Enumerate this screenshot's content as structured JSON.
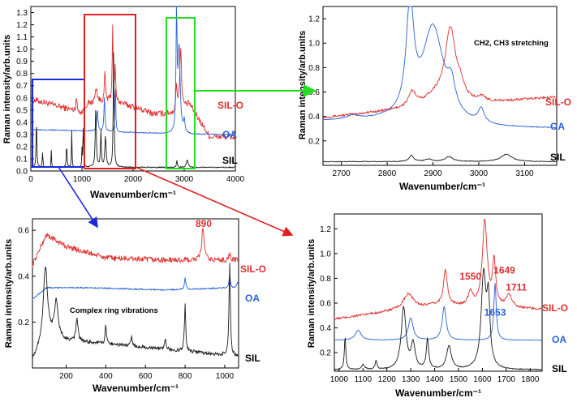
{
  "colors": {
    "sil": "#1a1a1a",
    "oa": "#2a62d6",
    "silo": "#e03030",
    "green": "#22dd22",
    "blue_box": "#1a2ad8",
    "red_box": "#e02020"
  },
  "chart_data": [
    {
      "id": "overview",
      "type": "line",
      "xlabel": "Wavenumber/cm⁻¹",
      "ylabel": "Raman intensity/arb.units",
      "xlim": [
        0,
        4000
      ],
      "ylim": [
        0,
        1.35
      ],
      "xticks": [
        0,
        1000,
        2000,
        3000,
        4000
      ],
      "xtick_labels": [
        "0",
        "1000",
        "2000",
        "3000",
        "4000"
      ],
      "yticks": [
        0,
        0.1,
        0.2,
        0.3,
        0.4,
        0.5,
        0.6,
        0.7,
        0.8,
        0.9,
        1.0,
        1.1,
        1.2,
        1.3
      ],
      "ytick_labels": [
        "0.0",
        "0.1",
        "0.2",
        "0.3",
        "0.4",
        "0.5",
        "0.6",
        "0.7",
        "0.8",
        "0.9",
        "1.0",
        "1.1",
        "1.2",
        "1.3"
      ],
      "series": [
        {
          "name": "SIL-O",
          "color": "#e03030",
          "base": [
            [
              100,
              0.58
            ],
            [
              1000,
              0.48
            ],
            [
              1100,
              0.55
            ],
            [
              1600,
              0.58
            ],
            [
              2400,
              0.47
            ],
            [
              2800,
              0.47
            ],
            [
              3100,
              0.55
            ],
            [
              3500,
              0.28
            ]
          ],
          "noise": 0.025,
          "peaks": [
            [
              890,
              0.12,
              12
            ],
            [
              1280,
              0.12,
              25
            ],
            [
              1450,
              0.25,
              12
            ],
            [
              1600,
              0.62,
              10
            ],
            [
              1649,
              0.3,
              10
            ],
            [
              2850,
              0.2,
              18
            ],
            [
              2930,
              0.5,
              20
            ]
          ]
        },
        {
          "name": "OA",
          "color": "#2a62d6",
          "base": [
            [
              100,
              0.34
            ],
            [
              1000,
              0.33
            ],
            [
              2400,
              0.31
            ],
            [
              2800,
              0.3
            ],
            [
              3500,
              0.3
            ]
          ],
          "noise": 0.004,
          "peaks": [
            [
              1300,
              0.18,
              15
            ],
            [
              1440,
              0.28,
              12
            ],
            [
              1653,
              0.44,
              8
            ],
            [
              2850,
              0.97,
              12
            ],
            [
              2900,
              0.7,
              25
            ],
            [
              3000,
              0.1,
              15
            ]
          ]
        },
        {
          "name": "SIL",
          "color": "#1a1a1a",
          "base": [
            [
              100,
              0.03
            ],
            [
              3500,
              0.03
            ]
          ],
          "noise": 0.004,
          "peaks": [
            [
              110,
              0.42,
              8
            ],
            [
              230,
              0.12,
              8
            ],
            [
              400,
              0.14,
              6
            ],
            [
              700,
              0.2,
              8
            ],
            [
              800,
              0.3,
              6
            ],
            [
              1000,
              0.14,
              6
            ],
            [
              1025,
              0.42,
              6
            ],
            [
              1270,
              0.5,
              12
            ],
            [
              1370,
              0.3,
              10
            ],
            [
              1460,
              0.25,
              15
            ],
            [
              1620,
              0.95,
              10
            ],
            [
              2855,
              0.06,
              10
            ],
            [
              3060,
              0.06,
              20
            ]
          ]
        }
      ],
      "labels": [
        "SIL-O",
        "OA",
        "SIL"
      ]
    },
    {
      "id": "ch_region",
      "type": "line",
      "xlabel": "Wavenumber/cm⁻¹",
      "ylabel": "Raman intensity/arb.units",
      "xlim": [
        2660,
        3170
      ],
      "ylim": [
        0,
        1.3
      ],
      "xticks": [
        2700,
        2800,
        2900,
        3000,
        3100
      ],
      "xtick_labels": [
        "2700",
        "2800",
        "2900",
        "3000",
        "3100"
      ],
      "yticks": [
        0.2,
        0.4,
        0.6,
        0.8,
        1.0,
        1.2
      ],
      "ytick_labels": [
        "0.2",
        "0.4",
        "0.6",
        "0.8",
        "1.0",
        "1.2"
      ],
      "annotation": "CH2, CH3 stretching",
      "series": [
        {
          "name": "SIL-O",
          "color": "#e03030",
          "base": [
            [
              2660,
              0.39
            ],
            [
              2800,
              0.44
            ],
            [
              3000,
              0.5
            ],
            [
              3170,
              0.56
            ]
          ],
          "noise": 0.01,
          "peaks": [
            [
              2855,
              0.12,
              10
            ],
            [
              2905,
              0.08,
              30
            ],
            [
              2938,
              0.6,
              14
            ],
            [
              2960,
              0.1,
              10
            ],
            [
              3005,
              0.04,
              10
            ]
          ]
        },
        {
          "name": "OA",
          "color": "#2a62d6",
          "base": [
            [
              2660,
              0.36
            ],
            [
              2800,
              0.36
            ],
            [
              3000,
              0.3
            ],
            [
              3170,
              0.3
            ]
          ],
          "noise": 0.003,
          "peaks": [
            [
              2725,
              0.03,
              15
            ],
            [
              2850,
              0.88,
              10
            ],
            [
              2900,
              0.78,
              28
            ],
            [
              2940,
              0.2,
              10
            ],
            [
              3005,
              0.12,
              8
            ]
          ]
        },
        {
          "name": "SIL",
          "color": "#1a1a1a",
          "base": [
            [
              2660,
              0.03
            ],
            [
              3170,
              0.03
            ]
          ],
          "noise": 0.003,
          "peaks": [
            [
              2853,
              0.05,
              6
            ],
            [
              2890,
              0.02,
              8
            ],
            [
              2935,
              0.04,
              10
            ],
            [
              3060,
              0.06,
              15
            ]
          ]
        }
      ],
      "labels": [
        "SIL-O",
        "OA",
        "SIL"
      ]
    },
    {
      "id": "ring_region",
      "type": "line",
      "xlabel": "Wavenumber/cm⁻¹",
      "ylabel": "Raman intensity/arb.units",
      "xlim": [
        30,
        1070
      ],
      "ylim": [
        0,
        0.65
      ],
      "xticks": [
        200,
        400,
        600,
        800,
        1000
      ],
      "xtick_labels": [
        "200",
        "400",
        "600",
        "800",
        "1000"
      ],
      "yticks": [
        0.2,
        0.4,
        0.6
      ],
      "ytick_labels": [
        "0.2",
        "0.4",
        "0.6"
      ],
      "annotation": "890",
      "note": "Complex  ring vibrations",
      "series": [
        {
          "name": "SIL-O",
          "color": "#e03030",
          "base": [
            [
              30,
              0.45
            ],
            [
              100,
              0.58
            ],
            [
              200,
              0.53
            ],
            [
              400,
              0.48
            ],
            [
              700,
              0.47
            ],
            [
              1070,
              0.47
            ]
          ],
          "noise": 0.012,
          "peaks": [
            [
              890,
              0.14,
              7
            ],
            [
              1025,
              0.03,
              5
            ]
          ]
        },
        {
          "name": "OA",
          "color": "#2a62d6",
          "base": [
            [
              30,
              0.3
            ],
            [
              100,
              0.35
            ],
            [
              300,
              0.35
            ],
            [
              700,
              0.34
            ],
            [
              1070,
              0.35
            ]
          ],
          "noise": 0.003,
          "peaks": [
            [
              800,
              0.05,
              4
            ],
            [
              1025,
              0.05,
              4
            ],
            [
              1065,
              0.02,
              6
            ]
          ]
        },
        {
          "name": "SIL",
          "color": "#1a1a1a",
          "base": [
            [
              30,
              0.03
            ],
            [
              100,
              0.15
            ],
            [
              200,
              0.12
            ],
            [
              600,
              0.09
            ],
            [
              1070,
              0.05
            ]
          ],
          "noise": 0.008,
          "peaks": [
            [
              95,
              0.3,
              12
            ],
            [
              150,
              0.16,
              10
            ],
            [
              255,
              0.1,
              6
            ],
            [
              400,
              0.08,
              4
            ],
            [
              530,
              0.04,
              5
            ],
            [
              700,
              0.04,
              5
            ],
            [
              800,
              0.2,
              4
            ],
            [
              1025,
              0.4,
              4
            ]
          ]
        }
      ],
      "labels": [
        "SIL-O",
        "OA",
        "SIL"
      ]
    },
    {
      "id": "fingerprint_region",
      "type": "line",
      "xlabel": "Wavenumber/cm⁻¹",
      "ylabel": "Raman intensity/arb.units",
      "xlim": [
        980,
        1850
      ],
      "ylim": [
        0.05,
        1.32
      ],
      "xticks": [
        1000,
        1100,
        1200,
        1300,
        1400,
        1500,
        1600,
        1700,
        1800
      ],
      "xtick_labels": [
        "1000",
        "1100",
        "1200",
        "1300",
        "1400",
        "1500",
        "1600",
        "1700",
        "1800"
      ],
      "yticks": [
        0.2,
        0.4,
        0.6,
        0.8,
        1.0,
        1.2
      ],
      "ytick_labels": [
        "0.2",
        "0.4",
        "0.6",
        "0.8",
        "1.0",
        "1.2"
      ],
      "annotations": [
        {
          "text": "1550",
          "x": 1550,
          "y": 0.79,
          "color": "#e03030"
        },
        {
          "text": "1649",
          "x": 1692,
          "y": 0.84,
          "color": "#e03030"
        },
        {
          "text": "1711",
          "x": 1742,
          "y": 0.7,
          "color": "#e03030"
        },
        {
          "text": "1653",
          "x": 1653,
          "y": 0.5,
          "color": "#2a62d6"
        }
      ],
      "series": [
        {
          "name": "SIL-O",
          "color": "#e03030",
          "base": [
            [
              980,
              0.47
            ],
            [
              1200,
              0.53
            ],
            [
              1400,
              0.58
            ],
            [
              1850,
              0.55
            ]
          ],
          "noise": 0.01,
          "peaks": [
            [
              1290,
              0.12,
              25
            ],
            [
              1445,
              0.28,
              10
            ],
            [
              1550,
              0.11,
              12
            ],
            [
              1610,
              0.7,
              12
            ],
            [
              1649,
              0.35,
              8
            ],
            [
              1711,
              0.1,
              15
            ]
          ]
        },
        {
          "name": "OA",
          "color": "#2a62d6",
          "base": [
            [
              980,
              0.3
            ],
            [
              1850,
              0.3
            ]
          ],
          "noise": 0.002,
          "peaks": [
            [
              1080,
              0.08,
              15
            ],
            [
              1300,
              0.18,
              12
            ],
            [
              1440,
              0.27,
              10
            ],
            [
              1653,
              0.46,
              6
            ]
          ]
        },
        {
          "name": "SIL",
          "color": "#1a1a1a",
          "base": [
            [
              980,
              0.06
            ],
            [
              1850,
              0.06
            ]
          ],
          "noise": 0.004,
          "peaks": [
            [
              1025,
              0.26,
              4
            ],
            [
              1100,
              0.04,
              8
            ],
            [
              1155,
              0.07,
              5
            ],
            [
              1270,
              0.5,
              12
            ],
            [
              1310,
              0.2,
              10
            ],
            [
              1370,
              0.24,
              6
            ],
            [
              1460,
              0.19,
              12
            ],
            [
              1605,
              0.75,
              12
            ],
            [
              1625,
              0.5,
              8
            ]
          ]
        }
      ],
      "labels": [
        "SIL-O",
        "OA",
        "SIL"
      ]
    }
  ]
}
